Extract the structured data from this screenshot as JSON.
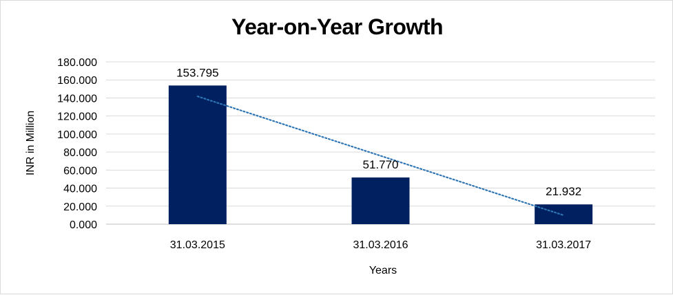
{
  "chart_data": {
    "type": "bar",
    "title": "Year-on-Year Growth",
    "xlabel": "Years",
    "ylabel": "INR in Million",
    "categories": [
      "31.03.2015",
      "31.03.2016",
      "31.03.2017"
    ],
    "values": [
      153.795,
      51.77,
      21.932
    ],
    "data_labels": [
      "153.795",
      "51.770",
      "21.932"
    ],
    "ylim": [
      0,
      180
    ],
    "yticks": [
      0,
      20,
      40,
      60,
      80,
      100,
      120,
      140,
      160,
      180
    ],
    "ytick_labels": [
      "0.000",
      "20.000",
      "40.000",
      "60.000",
      "80.000",
      "100.000",
      "120.000",
      "140.000",
      "160.000",
      "180.000"
    ],
    "grid": true,
    "legend": "none",
    "trendline": {
      "type": "linear",
      "style": "dotted"
    },
    "colors": {
      "bar": "#002060",
      "trendline": "#2e75b6",
      "grid": "#d9d9d9"
    }
  }
}
